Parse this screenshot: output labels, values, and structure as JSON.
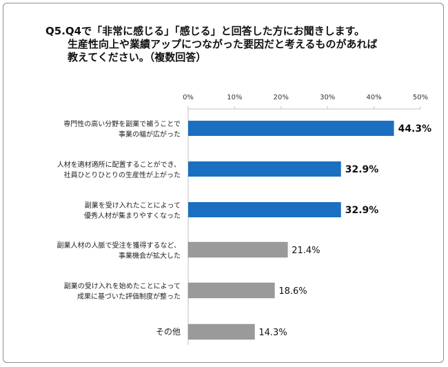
{
  "title": {
    "lines": [
      "Q5.Q4で「非常に感じる」「感じる」と回答した方にお聞きします。",
      "生産性向上や業績アップにつながった要因だと考えるものがあれば",
      "教えてください。（複数回答）"
    ]
  },
  "chart_data": {
    "type": "bar",
    "orientation": "horizontal",
    "xlim": [
      0,
      50
    ],
    "x_ticks": [
      "0%",
      "10%",
      "20%",
      "30%",
      "40%",
      "50%"
    ],
    "grid": false,
    "categories": [
      [
        "専門性の高い分野を副業で補うことで",
        "事業の幅が広がった"
      ],
      [
        "人材を適材適所に配置することができ、",
        "社員ひとりひとりの生産性が上がった"
      ],
      [
        "副業を受け入れたことによって",
        "優秀人材が集まりやすくなった"
      ],
      [
        "副業人材の人脈で受注を獲得するなど、",
        "事業機会が拡大した"
      ],
      [
        "副業の受け入れを始めたことによって",
        "成果に基づいた評価制度が整った"
      ],
      [
        "その他"
      ]
    ],
    "values": [
      44.3,
      32.9,
      32.9,
      21.4,
      18.6,
      14.3
    ],
    "value_labels": [
      "44.3%",
      "32.9%",
      "32.9%",
      "21.4%",
      "18.6%",
      "14.3%"
    ],
    "highlight": [
      true,
      true,
      true,
      false,
      false,
      false
    ],
    "colors": {
      "highlight": "#1a6fc0",
      "other": "#9a9a9a"
    }
  }
}
